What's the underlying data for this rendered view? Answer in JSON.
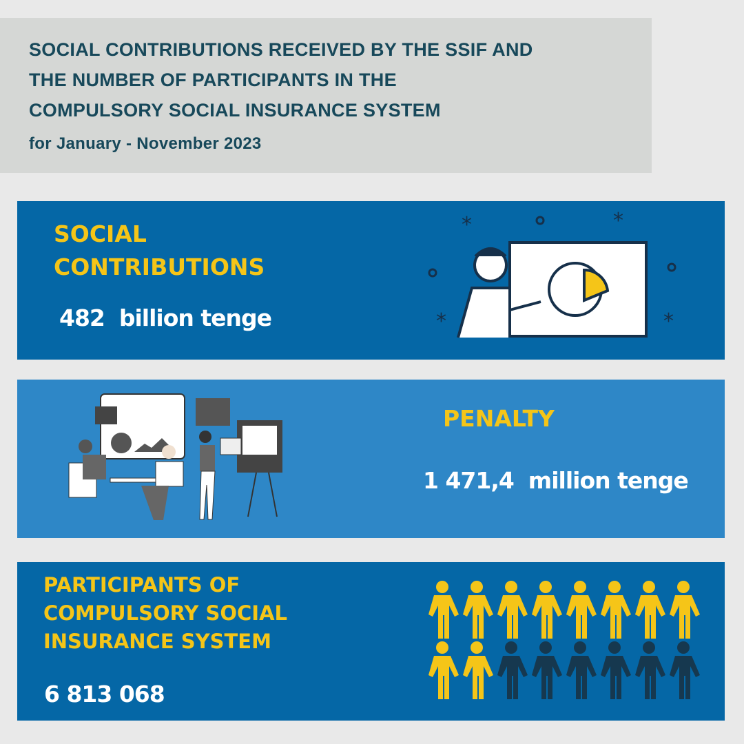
{
  "header": {
    "title_lines": [
      "SOCIAL CONTRIBUTIONS RECEIVED BY THE SSIF AND",
      "THE NUMBER OF PARTICIPANTS IN THE",
      "COMPULSORY SOCIAL INSURANCE SYSTEM"
    ],
    "subtitle": "for January - November 2023"
  },
  "panels": [
    {
      "heading_lines": [
        "SOCIAL",
        "CONTRIBUTIONS"
      ],
      "value": "482  billion tenge"
    },
    {
      "heading_lines": [
        "PENALTY"
      ],
      "value": "1 471,4  million tenge"
    },
    {
      "heading_lines": [
        "PARTICIPANTS OF",
        "COMPULSORY SOCIAL",
        "INSURANCE SYSTEM"
      ],
      "value": "6 813 068"
    }
  ]
}
